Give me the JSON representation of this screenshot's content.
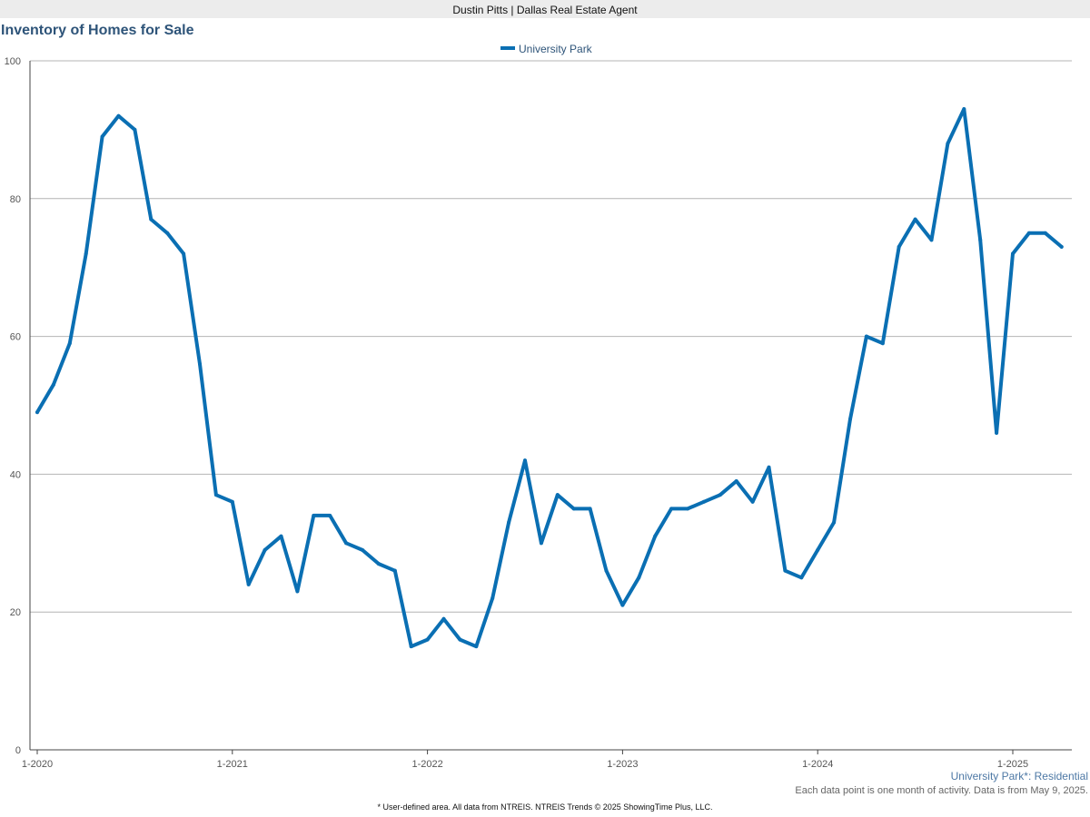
{
  "header": {
    "agent_line": "Dustin Pitts | Dallas Real Estate Agent"
  },
  "footer": {
    "area_label": "University Park*: Residential",
    "note": "Each data point is one month of activity. Data is from May 9, 2025.",
    "source": "* User-defined area. All data from NTREIS. NTREIS Trends © 2025 ShowingTime Plus, LLC."
  },
  "colors": {
    "series": "#0a6fb3",
    "title": "#2e5479",
    "grid": "#b4b4b4"
  },
  "chart_data": {
    "type": "line",
    "title": "Inventory of Homes for Sale",
    "xlabel": "",
    "ylabel": "",
    "ylim": [
      0,
      100
    ],
    "yticks": [
      0,
      20,
      40,
      60,
      80,
      100
    ],
    "xticks": [
      "1-2020",
      "1-2021",
      "1-2022",
      "1-2023",
      "1-2024",
      "1-2025"
    ],
    "start": "1-2020",
    "grid": true,
    "legend_position": "top-center",
    "x": [
      "1-2020",
      "2-2020",
      "3-2020",
      "4-2020",
      "5-2020",
      "6-2020",
      "7-2020",
      "8-2020",
      "9-2020",
      "10-2020",
      "11-2020",
      "12-2020",
      "1-2021",
      "2-2021",
      "3-2021",
      "4-2021",
      "5-2021",
      "6-2021",
      "7-2021",
      "8-2021",
      "9-2021",
      "10-2021",
      "11-2021",
      "12-2021",
      "1-2022",
      "2-2022",
      "3-2022",
      "4-2022",
      "5-2022",
      "6-2022",
      "7-2022",
      "8-2022",
      "9-2022",
      "10-2022",
      "11-2022",
      "12-2022",
      "1-2023",
      "2-2023",
      "3-2023",
      "4-2023",
      "5-2023",
      "6-2023",
      "7-2023",
      "8-2023",
      "9-2023",
      "10-2023",
      "11-2023",
      "12-2023",
      "1-2024",
      "2-2024",
      "3-2024",
      "4-2024",
      "5-2024",
      "6-2024",
      "7-2024",
      "8-2024",
      "9-2024",
      "10-2024",
      "11-2024",
      "12-2024",
      "1-2025",
      "2-2025",
      "3-2025",
      "4-2025"
    ],
    "series": [
      {
        "name": "University Park",
        "values": [
          49,
          53,
          59,
          72,
          89,
          92,
          90,
          77,
          75,
          72,
          56,
          37,
          36,
          24,
          29,
          31,
          23,
          34,
          34,
          30,
          29,
          27,
          26,
          15,
          16,
          19,
          16,
          15,
          22,
          33,
          42,
          30,
          37,
          35,
          35,
          26,
          21,
          25,
          31,
          35,
          35,
          36,
          37,
          39,
          36,
          41,
          26,
          25,
          29,
          33,
          48,
          60,
          59,
          73,
          77,
          74,
          88,
          93,
          74,
          46,
          72,
          75,
          75,
          73
        ]
      }
    ]
  }
}
